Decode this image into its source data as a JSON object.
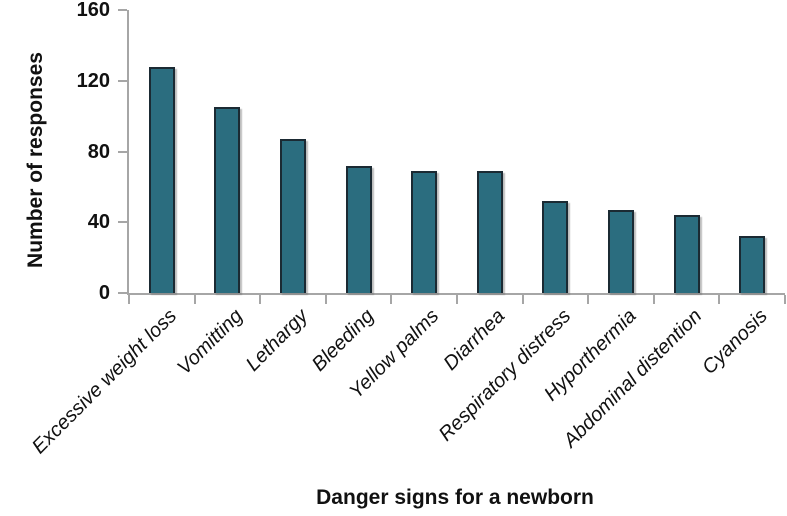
{
  "chart_data": {
    "type": "bar",
    "title": "",
    "xlabel": "Danger signs for a newborn",
    "ylabel": "Number of responses",
    "categories": [
      "Excessive weight loss",
      "Vomitting",
      "Lethargy",
      "Bleeding",
      "Yellow palms",
      "Diarrhea",
      "Respiratory distress",
      "Hyporthermia",
      "Abdominal distention",
      "Cyanosis"
    ],
    "values": [
      128,
      105,
      87,
      72,
      69,
      69,
      52,
      47,
      44,
      32
    ],
    "ylim": [
      0,
      160
    ],
    "yticks": [
      0,
      40,
      80,
      120,
      160
    ],
    "grid": "off",
    "legend": "none",
    "colors": {
      "bar_fill": "#2b6d7f",
      "bar_border": "#1b2a33",
      "axis_line": "#a6a6a6",
      "text": "#111111",
      "background": "#ffffff"
    }
  }
}
